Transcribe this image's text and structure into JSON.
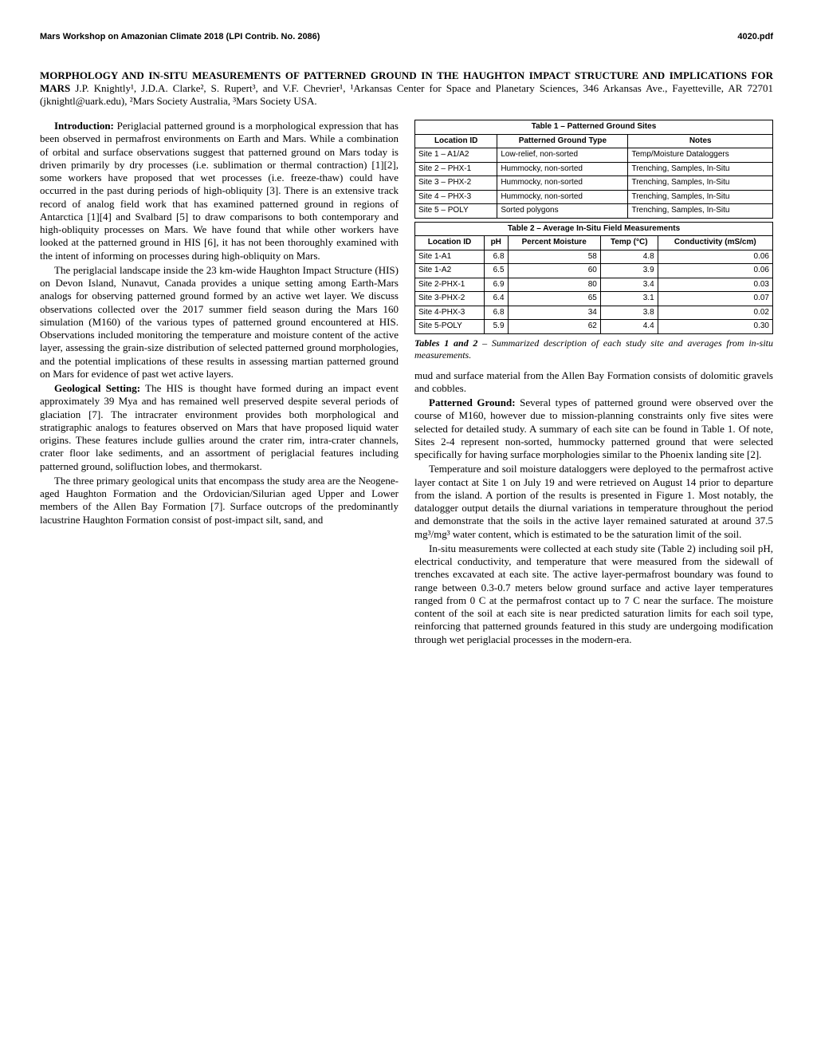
{
  "header": {
    "left": "Mars Workshop on Amazonian Climate 2018 (LPI Contrib. No. 2086)",
    "right": "4020.pdf"
  },
  "title": {
    "main_bold": "MORPHOLOGY AND IN-SITU MEASUREMENTS OF PATTERNED GROUND IN THE HAUGHTON IMPACT STRUCTURE AND IMPLICATIONS FOR MARS",
    "authors": " J.P. Knightly¹, J.D.A. Clarke², S. Rupert³, and V.F. Chevrier¹, ¹Arkansas Center for Space and Planetary Sciences, 346 Arkansas Ave., Fayetteville, AR 72701 (jknightl@uark.edu), ²Mars Society Australia, ³Mars Society USA."
  },
  "left_col": {
    "intro_head": "Introduction:",
    "intro_body": " Periglacial patterned ground is a morphological expression that has been observed in permafrost environments on Earth and Mars. While a combination of orbital and surface observations suggest that patterned ground on Mars today is driven primarily by dry processes (i.e. sublimation or thermal contraction) [1][2], some workers have proposed that wet processes (i.e. freeze-thaw) could have occurred in the past during periods of high-obliquity [3]. There is an extensive track record of analog field work that has examined patterned ground in regions of Antarctica [1][4] and Svalbard [5] to draw comparisons to both contemporary and high-obliquity processes on Mars. We have found that while other workers have looked at the patterned ground in HIS [6], it has not been thoroughly examined with the intent of informing on processes during high-obliquity on Mars.",
    "p2": "The periglacial landscape inside the 23 km-wide Haughton Impact Structure (HIS) on Devon Island, Nunavut, Canada provides a unique setting among Earth-Mars analogs for observing patterned ground formed by an active wet layer. We discuss observations collected over the 2017 summer field season during the Mars 160 simulation (M160) of the various types of patterned ground encountered at HIS. Observations included monitoring the temperature and moisture content of the active layer, assessing the grain-size distribution of selected patterned ground morphologies, and the potential implications of these results in assessing martian patterned ground on Mars for evidence of past wet active layers.",
    "geo_head": "Geological Setting:",
    "geo_body": " The HIS is thought have formed during an impact event approximately 39 Mya and has remained well preserved despite several periods of glaciation [7]. The intracrater environment provides both morphological and stratigraphic analogs to features observed on Mars that have proposed liquid water origins. These features include gullies around the crater rim, intra-crater channels, crater floor lake sediments, and an assortment of periglacial features including patterned ground, solifluction lobes, and thermokarst.",
    "p4": "The three primary geological units that encompass the study area are the Neogene-aged Haughton Formation and the Ordovician/Silurian aged Upper and Lower members of the Allen Bay Formation [7]. Surface outcrops of the predominantly lacustrine Haughton Formation consist of post-impact silt, sand, and"
  },
  "table1": {
    "title": "Table 1 – Patterned Ground Sites",
    "headers": [
      "Location ID",
      "Patterned Ground Type",
      "Notes"
    ],
    "rows": [
      [
        "Site 1 – A1/A2",
        "Low-relief, non-sorted",
        "Temp/Moisture Dataloggers"
      ],
      [
        "Site 2 – PHX-1",
        "Hummocky, non-sorted",
        "Trenching, Samples, In-Situ"
      ],
      [
        "Site 3 – PHX-2",
        "Hummocky, non-sorted",
        "Trenching, Samples, In-Situ"
      ],
      [
        "Site 4 – PHX-3",
        "Hummocky, non-sorted",
        "Trenching, Samples, In-Situ"
      ],
      [
        "Site 5 – POLY",
        "Sorted polygons",
        "Trenching, Samples, In-Situ"
      ]
    ]
  },
  "table2": {
    "title": "Table 2 – Average In-Situ Field Measurements",
    "headers": [
      "Location ID",
      "pH",
      "Percent Moisture",
      "Temp (°C)",
      "Conductivity (mS/cm)"
    ],
    "rows": [
      [
        "Site 1-A1",
        "6.8",
        "58",
        "4.8",
        "0.06"
      ],
      [
        "Site 1-A2",
        "6.5",
        "60",
        "3.9",
        "0.06"
      ],
      [
        "Site 2-PHX-1",
        "6.9",
        "80",
        "3.4",
        "0.03"
      ],
      [
        "Site 3-PHX-2",
        "6.4",
        "65",
        "3.1",
        "0.07"
      ],
      [
        "Site 4-PHX-3",
        "6.8",
        "34",
        "3.8",
        "0.02"
      ],
      [
        "Site 5-POLY",
        "5.9",
        "62",
        "4.4",
        "0.30"
      ]
    ]
  },
  "caption": {
    "bold": "Tables 1 and 2",
    "rest": " – Summarized description of each study site and averages from in-situ measurements."
  },
  "right_col": {
    "p1": "mud and surface material from the Allen Bay Formation consists of dolomitic gravels and cobbles.",
    "pg_head": "Patterned Ground:",
    "pg_body": " Several types of patterned ground were observed over the course of M160, however due to mission-planning constraints only five sites were selected for detailed study. A summary of each site can be found in Table 1. Of note, Sites 2-4 represent non-sorted, hummocky patterned ground that were selected specifically for having surface morphologies similar to the Phoenix landing site [2].",
    "p3": "Temperature and soil moisture dataloggers were deployed to the permafrost active layer contact at Site 1 on July 19 and were retrieved on August 14 prior to departure from the island. A portion of the results is presented in Figure 1. Most notably, the datalogger output details the diurnal variations in temperature throughout the period and demonstrate that the soils in the active layer remained saturated at around 37.5 mg³/mg³ water content, which is estimated to be the saturation limit of the soil.",
    "p4": "In-situ measurements were collected at each study site (Table 2) including soil pH, electrical conductivity, and temperature that were measured from the sidewall of trenches excavated at each site. The active layer-permafrost boundary was found to range between 0.3-0.7 meters below ground surface and active layer temperatures ranged from 0 C at the permafrost contact up to 7 C near the surface. The moisture content of the soil at each site is near predicted saturation limits for each soil type, reinforcing that patterned grounds featured in this study are undergoing modification through wet periglacial processes in the modern-era."
  }
}
